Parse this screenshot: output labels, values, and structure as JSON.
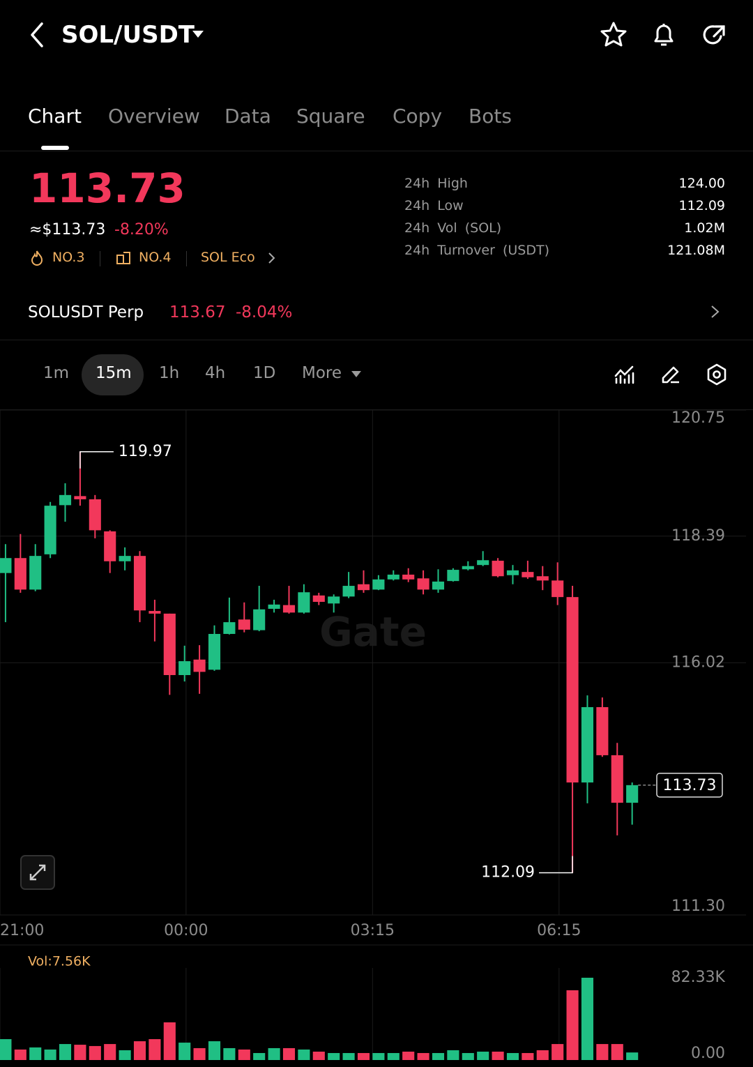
{
  "header": {
    "title": "SOL/USDT"
  },
  "tabs": [
    "Chart",
    "Overview",
    "Data",
    "Square",
    "Copy",
    "Bots"
  ],
  "active_tab": 0,
  "ticker": {
    "price": "113.73",
    "usd_price": "≈$113.73",
    "change": "-8.20%",
    "badges": [
      "NO.3",
      "NO.4",
      "SOL Eco"
    ],
    "stats": [
      {
        "label": "24h High",
        "value": "124.00"
      },
      {
        "label": "24h Low",
        "value": "112.09"
      },
      {
        "label": "24h Vol (SOL)",
        "value": "1.02M"
      },
      {
        "label": "24h Turnover (USDT)",
        "value": "121.08M"
      }
    ]
  },
  "perp": {
    "name": "SOLUSDT Perp",
    "price": "113.67",
    "change": "-8.04%"
  },
  "intervals": [
    "1m",
    "15m",
    "1h",
    "4h",
    "1D",
    "More"
  ],
  "active_interval": 1,
  "chart_data": {
    "type": "candlestick",
    "watermark": "Gate",
    "up_color": "#20bf84",
    "down_color": "#f2385b",
    "x": [
      0,
      1,
      2,
      3,
      4,
      5,
      6,
      7,
      8,
      9,
      10,
      11,
      12,
      13,
      14,
      15,
      16,
      17,
      18,
      19,
      20,
      21,
      22,
      23,
      24,
      25,
      26,
      27,
      28,
      29,
      30,
      31,
      32,
      33,
      34,
      35,
      36,
      37,
      38,
      39,
      40,
      41,
      42
    ],
    "open": [
      117.7,
      117.98,
      117.39,
      118.05,
      118.97,
      119.14,
      119.08,
      118.48,
      117.92,
      118.02,
      116.99,
      116.94,
      115.79,
      116.08,
      115.89,
      116.56,
      116.83,
      116.63,
      117.03,
      117.1,
      116.96,
      117.28,
      117.13,
      117.26,
      117.49,
      117.39,
      117.58,
      117.67,
      117.6,
      117.39,
      117.55,
      117.77,
      117.85,
      117.93,
      117.66,
      117.72,
      117.64,
      117.56,
      117.25,
      113.78,
      115.19,
      114.29,
      113.4
    ],
    "high": [
      118.24,
      118.43,
      118.24,
      119.03,
      119.38,
      119.97,
      119.16,
      118.5,
      118.18,
      118.11,
      117.2,
      116.94,
      116.34,
      116.35,
      116.72,
      117.24,
      117.15,
      117.46,
      117.2,
      117.46,
      117.49,
      117.33,
      117.3,
      117.72,
      117.75,
      117.66,
      117.75,
      117.79,
      117.75,
      117.77,
      117.79,
      117.92,
      118.11,
      117.98,
      117.85,
      117.93,
      117.83,
      117.9,
      117.46,
      115.41,
      115.37,
      114.52,
      113.78
    ],
    "low": [
      116.78,
      117.33,
      117.36,
      117.98,
      118.66,
      118.96,
      118.35,
      117.7,
      117.75,
      116.78,
      116.42,
      115.42,
      115.67,
      115.44,
      115.87,
      116.55,
      116.59,
      116.61,
      116.96,
      116.94,
      116.94,
      117.1,
      116.96,
      117.23,
      117.33,
      117.38,
      117.56,
      117.53,
      117.3,
      117.33,
      117.54,
      117.75,
      117.83,
      117.62,
      117.49,
      117.59,
      117.38,
      117.1,
      112.09,
      113.39,
      114.26,
      112.79,
      112.99
    ],
    "close": [
      117.98,
      117.39,
      118.02,
      118.96,
      119.16,
      119.08,
      118.5,
      117.92,
      118.02,
      117.0,
      116.94,
      115.79,
      116.05,
      115.85,
      116.56,
      116.78,
      116.64,
      117.02,
      117.11,
      116.96,
      117.34,
      117.16,
      117.26,
      117.46,
      117.38,
      117.58,
      117.67,
      117.58,
      117.39,
      117.54,
      117.76,
      117.83,
      117.94,
      117.64,
      117.75,
      117.62,
      117.56,
      117.25,
      113.78,
      115.19,
      114.29,
      113.4,
      113.73
    ],
    "volume": [
      20900,
      10500,
      12600,
      10500,
      16000,
      15300,
      14000,
      16000,
      9800,
      18800,
      20900,
      37700,
      17400,
      11900,
      18800,
      11900,
      10500,
      7000,
      11900,
      11900,
      10500,
      8400,
      7000,
      7000,
      7000,
      7000,
      7000,
      8400,
      7000,
      7000,
      9800,
      7000,
      8400,
      8400,
      7000,
      7000,
      9800,
      16000,
      69800,
      82330,
      16000,
      16000,
      7560
    ],
    "volume_label": "Vol:7.56K",
    "high_marker": 119.97,
    "low_marker": 112.09,
    "last_price": 113.73,
    "xlim": [
      -0.37,
      50.1
    ],
    "xticks": [
      {
        "value": -0.37,
        "label": "21:00"
      },
      {
        "value": 12.1,
        "label": "00:00"
      },
      {
        "value": 24.6,
        "label": "03:15"
      },
      {
        "value": 37.1,
        "label": "06:15"
      }
    ],
    "ylim": [
      111.3,
      120.75
    ],
    "yticks": [
      {
        "value": 111.3,
        "label": "111.30"
      },
      116.02,
      118.39,
      120.75
    ],
    "vlim": [
      0,
      82330
    ],
    "vticks": [
      {
        "value": 0,
        "label": "0.00"
      },
      {
        "value": 82330,
        "label": "82.33K"
      }
    ],
    "grid": true
  }
}
